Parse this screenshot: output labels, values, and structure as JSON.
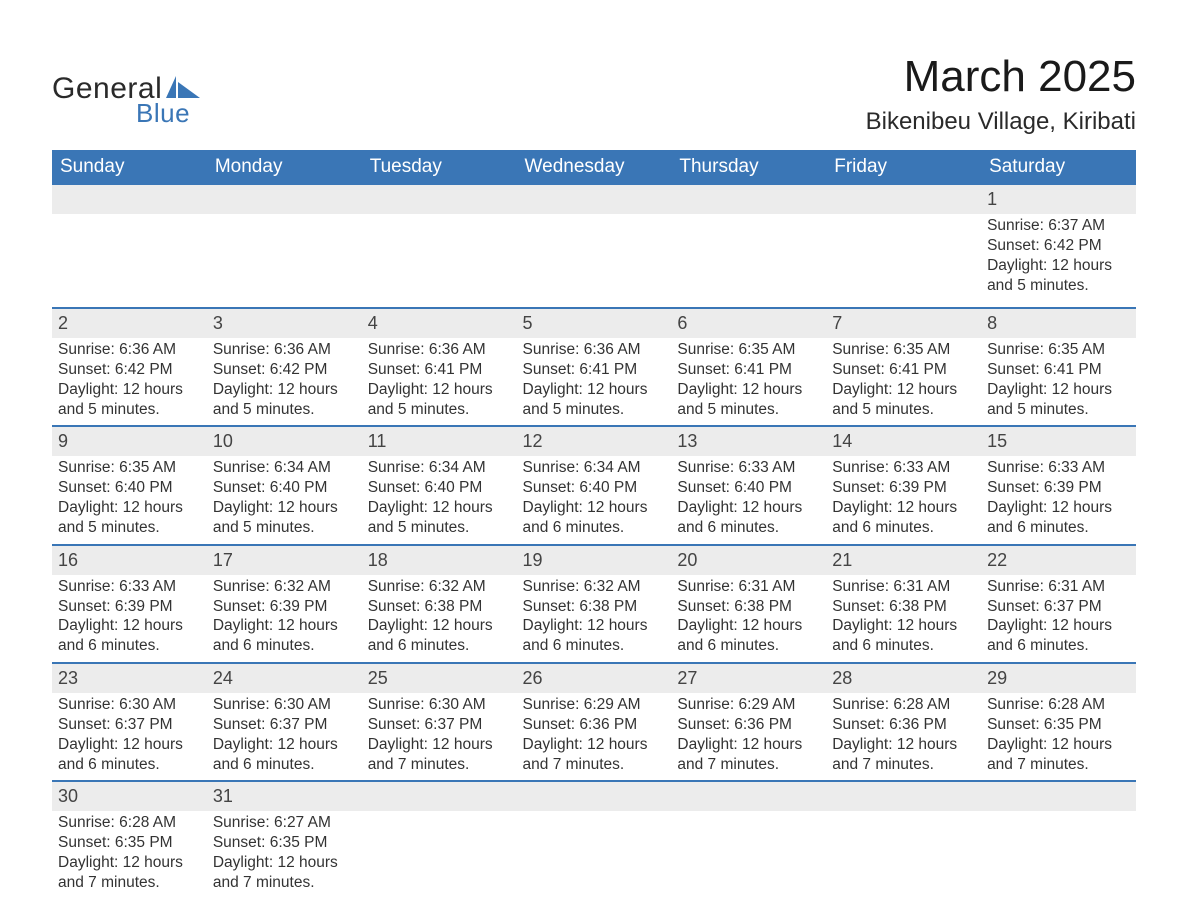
{
  "brand": {
    "part1": "General",
    "part2": "Blue",
    "shape_color": "#3a76b6"
  },
  "title": "March 2025",
  "location": "Bikenibeu Village, Kiribati",
  "colors": {
    "header_bg": "#3a76b6",
    "header_text": "#ffffff",
    "daynum_bg": "#ececec",
    "row_divider": "#3a76b6",
    "body_text": "#333333",
    "page_bg": "#ffffff"
  },
  "typography": {
    "title_fontsize_pt": 33,
    "location_fontsize_pt": 18,
    "header_fontsize_pt": 14,
    "body_fontsize_pt": 12
  },
  "weekdays": [
    "Sunday",
    "Monday",
    "Tuesday",
    "Wednesday",
    "Thursday",
    "Friday",
    "Saturday"
  ],
  "weeks": [
    [
      {},
      {},
      {},
      {},
      {},
      {},
      {
        "n": "1",
        "sunrise": "Sunrise: 6:37 AM",
        "sunset": "Sunset: 6:42 PM",
        "dl1": "Daylight: 12 hours",
        "dl2": "and 5 minutes."
      }
    ],
    [
      {
        "n": "2",
        "sunrise": "Sunrise: 6:36 AM",
        "sunset": "Sunset: 6:42 PM",
        "dl1": "Daylight: 12 hours",
        "dl2": "and 5 minutes."
      },
      {
        "n": "3",
        "sunrise": "Sunrise: 6:36 AM",
        "sunset": "Sunset: 6:42 PM",
        "dl1": "Daylight: 12 hours",
        "dl2": "and 5 minutes."
      },
      {
        "n": "4",
        "sunrise": "Sunrise: 6:36 AM",
        "sunset": "Sunset: 6:41 PM",
        "dl1": "Daylight: 12 hours",
        "dl2": "and 5 minutes."
      },
      {
        "n": "5",
        "sunrise": "Sunrise: 6:36 AM",
        "sunset": "Sunset: 6:41 PM",
        "dl1": "Daylight: 12 hours",
        "dl2": "and 5 minutes."
      },
      {
        "n": "6",
        "sunrise": "Sunrise: 6:35 AM",
        "sunset": "Sunset: 6:41 PM",
        "dl1": "Daylight: 12 hours",
        "dl2": "and 5 minutes."
      },
      {
        "n": "7",
        "sunrise": "Sunrise: 6:35 AM",
        "sunset": "Sunset: 6:41 PM",
        "dl1": "Daylight: 12 hours",
        "dl2": "and 5 minutes."
      },
      {
        "n": "8",
        "sunrise": "Sunrise: 6:35 AM",
        "sunset": "Sunset: 6:41 PM",
        "dl1": "Daylight: 12 hours",
        "dl2": "and 5 minutes."
      }
    ],
    [
      {
        "n": "9",
        "sunrise": "Sunrise: 6:35 AM",
        "sunset": "Sunset: 6:40 PM",
        "dl1": "Daylight: 12 hours",
        "dl2": "and 5 minutes."
      },
      {
        "n": "10",
        "sunrise": "Sunrise: 6:34 AM",
        "sunset": "Sunset: 6:40 PM",
        "dl1": "Daylight: 12 hours",
        "dl2": "and 5 minutes."
      },
      {
        "n": "11",
        "sunrise": "Sunrise: 6:34 AM",
        "sunset": "Sunset: 6:40 PM",
        "dl1": "Daylight: 12 hours",
        "dl2": "and 5 minutes."
      },
      {
        "n": "12",
        "sunrise": "Sunrise: 6:34 AM",
        "sunset": "Sunset: 6:40 PM",
        "dl1": "Daylight: 12 hours",
        "dl2": "and 6 minutes."
      },
      {
        "n": "13",
        "sunrise": "Sunrise: 6:33 AM",
        "sunset": "Sunset: 6:40 PM",
        "dl1": "Daylight: 12 hours",
        "dl2": "and 6 minutes."
      },
      {
        "n": "14",
        "sunrise": "Sunrise: 6:33 AM",
        "sunset": "Sunset: 6:39 PM",
        "dl1": "Daylight: 12 hours",
        "dl2": "and 6 minutes."
      },
      {
        "n": "15",
        "sunrise": "Sunrise: 6:33 AM",
        "sunset": "Sunset: 6:39 PM",
        "dl1": "Daylight: 12 hours",
        "dl2": "and 6 minutes."
      }
    ],
    [
      {
        "n": "16",
        "sunrise": "Sunrise: 6:33 AM",
        "sunset": "Sunset: 6:39 PM",
        "dl1": "Daylight: 12 hours",
        "dl2": "and 6 minutes."
      },
      {
        "n": "17",
        "sunrise": "Sunrise: 6:32 AM",
        "sunset": "Sunset: 6:39 PM",
        "dl1": "Daylight: 12 hours",
        "dl2": "and 6 minutes."
      },
      {
        "n": "18",
        "sunrise": "Sunrise: 6:32 AM",
        "sunset": "Sunset: 6:38 PM",
        "dl1": "Daylight: 12 hours",
        "dl2": "and 6 minutes."
      },
      {
        "n": "19",
        "sunrise": "Sunrise: 6:32 AM",
        "sunset": "Sunset: 6:38 PM",
        "dl1": "Daylight: 12 hours",
        "dl2": "and 6 minutes."
      },
      {
        "n": "20",
        "sunrise": "Sunrise: 6:31 AM",
        "sunset": "Sunset: 6:38 PM",
        "dl1": "Daylight: 12 hours",
        "dl2": "and 6 minutes."
      },
      {
        "n": "21",
        "sunrise": "Sunrise: 6:31 AM",
        "sunset": "Sunset: 6:38 PM",
        "dl1": "Daylight: 12 hours",
        "dl2": "and 6 minutes."
      },
      {
        "n": "22",
        "sunrise": "Sunrise: 6:31 AM",
        "sunset": "Sunset: 6:37 PM",
        "dl1": "Daylight: 12 hours",
        "dl2": "and 6 minutes."
      }
    ],
    [
      {
        "n": "23",
        "sunrise": "Sunrise: 6:30 AM",
        "sunset": "Sunset: 6:37 PM",
        "dl1": "Daylight: 12 hours",
        "dl2": "and 6 minutes."
      },
      {
        "n": "24",
        "sunrise": "Sunrise: 6:30 AM",
        "sunset": "Sunset: 6:37 PM",
        "dl1": "Daylight: 12 hours",
        "dl2": "and 6 minutes."
      },
      {
        "n": "25",
        "sunrise": "Sunrise: 6:30 AM",
        "sunset": "Sunset: 6:37 PM",
        "dl1": "Daylight: 12 hours",
        "dl2": "and 7 minutes."
      },
      {
        "n": "26",
        "sunrise": "Sunrise: 6:29 AM",
        "sunset": "Sunset: 6:36 PM",
        "dl1": "Daylight: 12 hours",
        "dl2": "and 7 minutes."
      },
      {
        "n": "27",
        "sunrise": "Sunrise: 6:29 AM",
        "sunset": "Sunset: 6:36 PM",
        "dl1": "Daylight: 12 hours",
        "dl2": "and 7 minutes."
      },
      {
        "n": "28",
        "sunrise": "Sunrise: 6:28 AM",
        "sunset": "Sunset: 6:36 PM",
        "dl1": "Daylight: 12 hours",
        "dl2": "and 7 minutes."
      },
      {
        "n": "29",
        "sunrise": "Sunrise: 6:28 AM",
        "sunset": "Sunset: 6:35 PM",
        "dl1": "Daylight: 12 hours",
        "dl2": "and 7 minutes."
      }
    ],
    [
      {
        "n": "30",
        "sunrise": "Sunrise: 6:28 AM",
        "sunset": "Sunset: 6:35 PM",
        "dl1": "Daylight: 12 hours",
        "dl2": "and 7 minutes."
      },
      {
        "n": "31",
        "sunrise": "Sunrise: 6:27 AM",
        "sunset": "Sunset: 6:35 PM",
        "dl1": "Daylight: 12 hours",
        "dl2": "and 7 minutes."
      },
      {},
      {},
      {},
      {},
      {}
    ]
  ]
}
